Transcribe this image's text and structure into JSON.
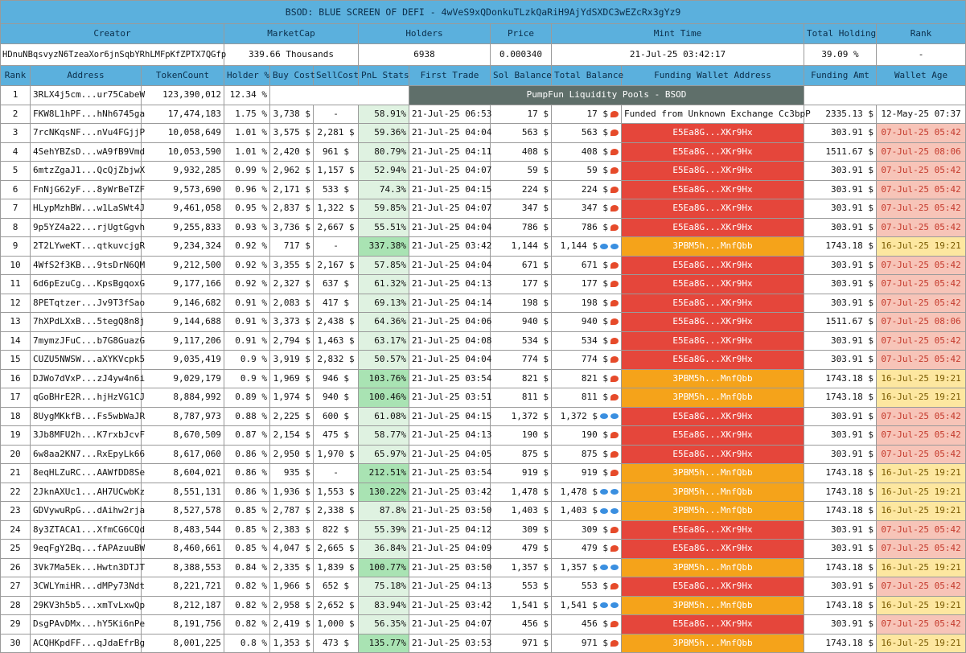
{
  "title": "BSOD: BLUE SCREEN OF DEFI - 4wVeS9xQDonkuTLzkQaRiH9AjYdSXDC3wEZcRx3gYz9",
  "summary_headers": [
    "Creator",
    "MarketCap",
    "Holders",
    "Price",
    "Mint Time",
    "Total Holding",
    "Rank"
  ],
  "summary": {
    "creator": "HDnuNBqsvyzN6TzeaXor6jnSqbYRhLMFpKfZPTX7QGfp",
    "market_cap": "339.66 Thousands",
    "holders": "6938",
    "price": "0.000340",
    "mint_time": "21-Jul-25 03:42:17",
    "total_holding": "39.09 %",
    "rank": "-"
  },
  "columns": [
    "Rank",
    "Address",
    "TokenCount",
    "Holder %",
    "Buy Cost",
    "SellCost",
    "PnL Stats",
    "First Trade",
    "Sol Balance",
    "Total Balance",
    "Funding Wallet Address",
    "Funding Amt",
    "Wallet Age"
  ],
  "pool_label": "PumpFun Liquidity Pools - BSOD",
  "colors": {
    "header": "#5bb0dd",
    "red": "#e5463b",
    "orange": "#f5a31a",
    "pool": "#5f6f6a",
    "pnl_light": "#dff2e1",
    "pnl_high": "#a9e3b3"
  },
  "rows": [
    {
      "rank": "1",
      "address": "3RLX4j5cm...ur75CabeW",
      "tokens": "123,390,012",
      "holder": "12.34 %"
    },
    {
      "rank": "2",
      "address": "FKW8L1hPF...hNh6745ga",
      "tokens": "17,474,183",
      "holder": "1.75 %",
      "buy": "3,738 $",
      "sell": "-",
      "pnl": "58.91%",
      "first": "21-Jul-25 06:53",
      "sol": "17 $",
      "total": "17 $",
      "icon": "shrimp",
      "fund": "Funded from Unknown Exchange Cc3bpP",
      "fundtype": "plain",
      "amt": "2335.13 $",
      "age": "12-May-25 07:37",
      "agetype": "plain"
    },
    {
      "rank": "3",
      "address": "7rcNKqsNF...nVu4FGjjP",
      "tokens": "10,058,649",
      "holder": "1.01 %",
      "buy": "3,575 $",
      "sell": "2,281 $",
      "pnl": "59.36%",
      "first": "21-Jul-25 04:04",
      "sol": "563 $",
      "total": "563 $",
      "icon": "shrimp",
      "fund": "E5Ea8G...XKr9Hx",
      "fundtype": "red",
      "amt": "303.91 $",
      "age": "07-Jul-25 05:42",
      "agetype": "red"
    },
    {
      "rank": "4",
      "address": "4SehYBZsD...wA9fB9Vmd",
      "tokens": "10,053,590",
      "holder": "1.01 %",
      "buy": "2,420 $",
      "sell": "961 $",
      "pnl": "80.79%",
      "first": "21-Jul-25 04:11",
      "sol": "408 $",
      "total": "408 $",
      "icon": "shrimp",
      "fund": "E5Ea8G...XKr9Hx",
      "fundtype": "red",
      "amt": "1511.67 $",
      "age": "07-Jul-25 08:06",
      "agetype": "red"
    },
    {
      "rank": "5",
      "address": "6mtzZgaJ1...QcQjZbjwX",
      "tokens": "9,932,285",
      "holder": "0.99 %",
      "buy": "2,962 $",
      "sell": "1,157 $",
      "pnl": "52.94%",
      "first": "21-Jul-25 04:07",
      "sol": "59 $",
      "total": "59 $",
      "icon": "shrimp",
      "fund": "E5Ea8G...XKr9Hx",
      "fundtype": "red",
      "amt": "303.91 $",
      "age": "07-Jul-25 05:42",
      "agetype": "red"
    },
    {
      "rank": "6",
      "address": "FnNjG62yF...8yWrBeTZF",
      "tokens": "9,573,690",
      "holder": "0.96 %",
      "buy": "2,171 $",
      "sell": "533 $",
      "pnl": "74.3%",
      "first": "21-Jul-25 04:15",
      "sol": "224 $",
      "total": "224 $",
      "icon": "shrimp",
      "fund": "E5Ea8G...XKr9Hx",
      "fundtype": "red",
      "amt": "303.91 $",
      "age": "07-Jul-25 05:42",
      "agetype": "red"
    },
    {
      "rank": "7",
      "address": "HLypMzhBW...w1LaSWt4J",
      "tokens": "9,461,058",
      "holder": "0.95 %",
      "buy": "2,837 $",
      "sell": "1,322 $",
      "pnl": "59.85%",
      "first": "21-Jul-25 04:07",
      "sol": "347 $",
      "total": "347 $",
      "icon": "shrimp",
      "fund": "E5Ea8G...XKr9Hx",
      "fundtype": "red",
      "amt": "303.91 $",
      "age": "07-Jul-25 05:42",
      "agetype": "red"
    },
    {
      "rank": "8",
      "address": "9p5YZ4a22...rjUgtGgvh",
      "tokens": "9,255,833",
      "holder": "0.93 %",
      "buy": "3,736 $",
      "sell": "2,667 $",
      "pnl": "55.51%",
      "first": "21-Jul-25 04:04",
      "sol": "786 $",
      "total": "786 $",
      "icon": "shrimp",
      "fund": "E5Ea8G...XKr9Hx",
      "fundtype": "red",
      "amt": "303.91 $",
      "age": "07-Jul-25 05:42",
      "agetype": "red"
    },
    {
      "rank": "9",
      "address": "2T2LYweKT...qtkuvcjgR",
      "tokens": "9,234,324",
      "holder": "0.92 %",
      "buy": "717 $",
      "sell": "-",
      "pnl": "337.38%",
      "pnlhi": true,
      "first": "21-Jul-25 03:42",
      "sol": "1,144 $",
      "total": "1,144 $",
      "icon": "fish",
      "fund": "3PBM5h...MnfQbb",
      "fundtype": "orange",
      "amt": "1743.18 $",
      "age": "16-Jul-25 19:21",
      "agetype": "yellow"
    },
    {
      "rank": "10",
      "address": "4WfS2f3KB...9tsDrN6QM",
      "tokens": "9,212,500",
      "holder": "0.92 %",
      "buy": "3,355 $",
      "sell": "2,167 $",
      "pnl": "57.85%",
      "first": "21-Jul-25 04:04",
      "sol": "671 $",
      "total": "671 $",
      "icon": "shrimp",
      "fund": "E5Ea8G...XKr9Hx",
      "fundtype": "red",
      "amt": "303.91 $",
      "age": "07-Jul-25 05:42",
      "agetype": "red"
    },
    {
      "rank": "11",
      "address": "6d6pEzuCg...KpsBgqoxG",
      "tokens": "9,177,166",
      "holder": "0.92 %",
      "buy": "2,327 $",
      "sell": "637 $",
      "pnl": "61.32%",
      "first": "21-Jul-25 04:13",
      "sol": "177 $",
      "total": "177 $",
      "icon": "shrimp",
      "fund": "E5Ea8G...XKr9Hx",
      "fundtype": "red",
      "amt": "303.91 $",
      "age": "07-Jul-25 05:42",
      "agetype": "red"
    },
    {
      "rank": "12",
      "address": "8PETqtzer...Jv9T3fSao",
      "tokens": "9,146,682",
      "holder": "0.91 %",
      "buy": "2,083 $",
      "sell": "417 $",
      "pnl": "69.13%",
      "first": "21-Jul-25 04:14",
      "sol": "198 $",
      "total": "198 $",
      "icon": "shrimp",
      "fund": "E5Ea8G...XKr9Hx",
      "fundtype": "red",
      "amt": "303.91 $",
      "age": "07-Jul-25 05:42",
      "agetype": "red"
    },
    {
      "rank": "13",
      "address": "7hXPdLXxB...5tegQ8n8j",
      "tokens": "9,144,688",
      "holder": "0.91 %",
      "buy": "3,373 $",
      "sell": "2,438 $",
      "pnl": "64.36%",
      "first": "21-Jul-25 04:06",
      "sol": "940 $",
      "total": "940 $",
      "icon": "shrimp",
      "fund": "E5Ea8G...XKr9Hx",
      "fundtype": "red",
      "amt": "1511.67 $",
      "age": "07-Jul-25 08:06",
      "agetype": "red"
    },
    {
      "rank": "14",
      "address": "7mymzJFuC...b7G8GuazG",
      "tokens": "9,117,206",
      "holder": "0.91 %",
      "buy": "2,794 $",
      "sell": "1,463 $",
      "pnl": "63.17%",
      "first": "21-Jul-25 04:08",
      "sol": "534 $",
      "total": "534 $",
      "icon": "shrimp",
      "fund": "E5Ea8G...XKr9Hx",
      "fundtype": "red",
      "amt": "303.91 $",
      "age": "07-Jul-25 05:42",
      "agetype": "red"
    },
    {
      "rank": "15",
      "address": "CUZU5NWSW...aXYKVcpk5",
      "tokens": "9,035,419",
      "holder": "0.9 %",
      "buy": "3,919 $",
      "sell": "2,832 $",
      "pnl": "50.57%",
      "first": "21-Jul-25 04:04",
      "sol": "774 $",
      "total": "774 $",
      "icon": "shrimp",
      "fund": "E5Ea8G...XKr9Hx",
      "fundtype": "red",
      "amt": "303.91 $",
      "age": "07-Jul-25 05:42",
      "agetype": "red"
    },
    {
      "rank": "16",
      "address": "DJWo7dVxP...zJ4yw4n6i",
      "tokens": "9,029,179",
      "holder": "0.9 %",
      "buy": "1,969 $",
      "sell": "946 $",
      "pnl": "103.76%",
      "pnlhi": true,
      "first": "21-Jul-25 03:54",
      "sol": "821 $",
      "total": "821 $",
      "icon": "shrimp",
      "fund": "3PBM5h...MnfQbb",
      "fundtype": "orange",
      "amt": "1743.18 $",
      "age": "16-Jul-25 19:21",
      "agetype": "yellow"
    },
    {
      "rank": "17",
      "address": "qGoBHrE2R...hjHzVG1CJ",
      "tokens": "8,884,992",
      "holder": "0.89 %",
      "buy": "1,974 $",
      "sell": "940 $",
      "pnl": "100.46%",
      "pnlhi": true,
      "first": "21-Jul-25 03:51",
      "sol": "811 $",
      "total": "811 $",
      "icon": "shrimp",
      "fund": "3PBM5h...MnfQbb",
      "fundtype": "orange",
      "amt": "1743.18 $",
      "age": "16-Jul-25 19:21",
      "agetype": "yellow"
    },
    {
      "rank": "18",
      "address": "8UygMKkfB...Fs5wbWaJR",
      "tokens": "8,787,973",
      "holder": "0.88 %",
      "buy": "2,225 $",
      "sell": "600 $",
      "pnl": "61.08%",
      "first": "21-Jul-25 04:15",
      "sol": "1,372 $",
      "total": "1,372 $",
      "icon": "fish",
      "fund": "E5Ea8G...XKr9Hx",
      "fundtype": "red",
      "amt": "303.91 $",
      "age": "07-Jul-25 05:42",
      "agetype": "red"
    },
    {
      "rank": "19",
      "address": "3Jb8MFU2h...K7rxbJcvF",
      "tokens": "8,670,509",
      "holder": "0.87 %",
      "buy": "2,154 $",
      "sell": "475 $",
      "pnl": "58.77%",
      "first": "21-Jul-25 04:13",
      "sol": "190 $",
      "total": "190 $",
      "icon": "shrimp",
      "fund": "E5Ea8G...XKr9Hx",
      "fundtype": "red",
      "amt": "303.91 $",
      "age": "07-Jul-25 05:42",
      "agetype": "red"
    },
    {
      "rank": "20",
      "address": "6w8aa2KN7...RxEpyLk66",
      "tokens": "8,617,060",
      "holder": "0.86 %",
      "buy": "2,950 $",
      "sell": "1,970 $",
      "pnl": "65.97%",
      "first": "21-Jul-25 04:05",
      "sol": "875 $",
      "total": "875 $",
      "icon": "shrimp",
      "fund": "E5Ea8G...XKr9Hx",
      "fundtype": "red",
      "amt": "303.91 $",
      "age": "07-Jul-25 05:42",
      "agetype": "red"
    },
    {
      "rank": "21",
      "address": "8eqHLZuRC...AAWfDD8Se",
      "tokens": "8,604,021",
      "holder": "0.86 %",
      "buy": "935 $",
      "sell": "-",
      "pnl": "212.51%",
      "pnlhi": true,
      "first": "21-Jul-25 03:54",
      "sol": "919 $",
      "total": "919 $",
      "icon": "shrimp",
      "fund": "3PBM5h...MnfQbb",
      "fundtype": "orange",
      "amt": "1743.18 $",
      "age": "16-Jul-25 19:21",
      "agetype": "yellow"
    },
    {
      "rank": "22",
      "address": "2JknAXUc1...AH7UCwbKz",
      "tokens": "8,551,131",
      "holder": "0.86 %",
      "buy": "1,936 $",
      "sell": "1,553 $",
      "pnl": "130.22%",
      "pnlhi": true,
      "first": "21-Jul-25 03:42",
      "sol": "1,478 $",
      "total": "1,478 $",
      "icon": "fish",
      "fund": "3PBM5h...MnfQbb",
      "fundtype": "orange",
      "amt": "1743.18 $",
      "age": "16-Jul-25 19:21",
      "agetype": "yellow"
    },
    {
      "rank": "23",
      "address": "GDVywuRpG...dAihw2rja",
      "tokens": "8,527,578",
      "holder": "0.85 %",
      "buy": "2,787 $",
      "sell": "2,338 $",
      "pnl": "87.8%",
      "first": "21-Jul-25 03:50",
      "sol": "1,403 $",
      "total": "1,403 $",
      "icon": "fish",
      "fund": "3PBM5h...MnfQbb",
      "fundtype": "orange",
      "amt": "1743.18 $",
      "age": "16-Jul-25 19:21",
      "agetype": "yellow"
    },
    {
      "rank": "24",
      "address": "8y3ZTACA1...XfmCG6CQd",
      "tokens": "8,483,544",
      "holder": "0.85 %",
      "buy": "2,383 $",
      "sell": "822 $",
      "pnl": "55.39%",
      "first": "21-Jul-25 04:12",
      "sol": "309 $",
      "total": "309 $",
      "icon": "shrimp",
      "fund": "E5Ea8G...XKr9Hx",
      "fundtype": "red",
      "amt": "303.91 $",
      "age": "07-Jul-25 05:42",
      "agetype": "red"
    },
    {
      "rank": "25",
      "address": "9eqFgY2Bq...fAPAzuuBW",
      "tokens": "8,460,661",
      "holder": "0.85 %",
      "buy": "4,047 $",
      "sell": "2,665 $",
      "pnl": "36.84%",
      "first": "21-Jul-25 04:09",
      "sol": "479 $",
      "total": "479 $",
      "icon": "shrimp",
      "fund": "E5Ea8G...XKr9Hx",
      "fundtype": "red",
      "amt": "303.91 $",
      "age": "07-Jul-25 05:42",
      "agetype": "red"
    },
    {
      "rank": "26",
      "address": "3Vk7Ma5Ek...Hwtn3DTJT",
      "tokens": "8,388,553",
      "holder": "0.84 %",
      "buy": "2,335 $",
      "sell": "1,839 $",
      "pnl": "100.77%",
      "pnlhi": true,
      "first": "21-Jul-25 03:50",
      "sol": "1,357 $",
      "total": "1,357 $",
      "icon": "fish",
      "fund": "3PBM5h...MnfQbb",
      "fundtype": "orange",
      "amt": "1743.18 $",
      "age": "16-Jul-25 19:21",
      "agetype": "yellow"
    },
    {
      "rank": "27",
      "address": "3CWLYmiHR...dMPy73Ndt",
      "tokens": "8,221,721",
      "holder": "0.82 %",
      "buy": "1,966 $",
      "sell": "652 $",
      "pnl": "75.18%",
      "first": "21-Jul-25 04:13",
      "sol": "553 $",
      "total": "553 $",
      "icon": "shrimp",
      "fund": "E5Ea8G...XKr9Hx",
      "fundtype": "red",
      "amt": "303.91 $",
      "age": "07-Jul-25 05:42",
      "agetype": "red"
    },
    {
      "rank": "28",
      "address": "29KV3h5b5...xmTvLxwQp",
      "tokens": "8,212,187",
      "holder": "0.82 %",
      "buy": "2,958 $",
      "sell": "2,652 $",
      "pnl": "83.94%",
      "first": "21-Jul-25 03:42",
      "sol": "1,541 $",
      "total": "1,541 $",
      "icon": "fish",
      "fund": "3PBM5h...MnfQbb",
      "fundtype": "orange",
      "amt": "1743.18 $",
      "age": "16-Jul-25 19:21",
      "agetype": "yellow"
    },
    {
      "rank": "29",
      "address": "DsgPAvDMx...hY5Ki6nPe",
      "tokens": "8,191,756",
      "holder": "0.82 %",
      "buy": "2,419 $",
      "sell": "1,000 $",
      "pnl": "56.35%",
      "first": "21-Jul-25 04:07",
      "sol": "456 $",
      "total": "456 $",
      "icon": "shrimp",
      "fund": "E5Ea8G...XKr9Hx",
      "fundtype": "red",
      "amt": "303.91 $",
      "age": "07-Jul-25 05:42",
      "agetype": "red"
    },
    {
      "rank": "30",
      "address": "ACQHKpdFF...qJdaEfrBg",
      "tokens": "8,001,225",
      "holder": "0.8 %",
      "buy": "1,353 $",
      "sell": "473 $",
      "pnl": "135.77%",
      "pnlhi": true,
      "first": "21-Jul-25 03:53",
      "sol": "971 $",
      "total": "971 $",
      "icon": "shrimp",
      "fund": "3PBM5h...MnfQbb",
      "fundtype": "orange",
      "amt": "1743.18 $",
      "age": "16-Jul-25 19:21",
      "agetype": "yellow"
    }
  ]
}
